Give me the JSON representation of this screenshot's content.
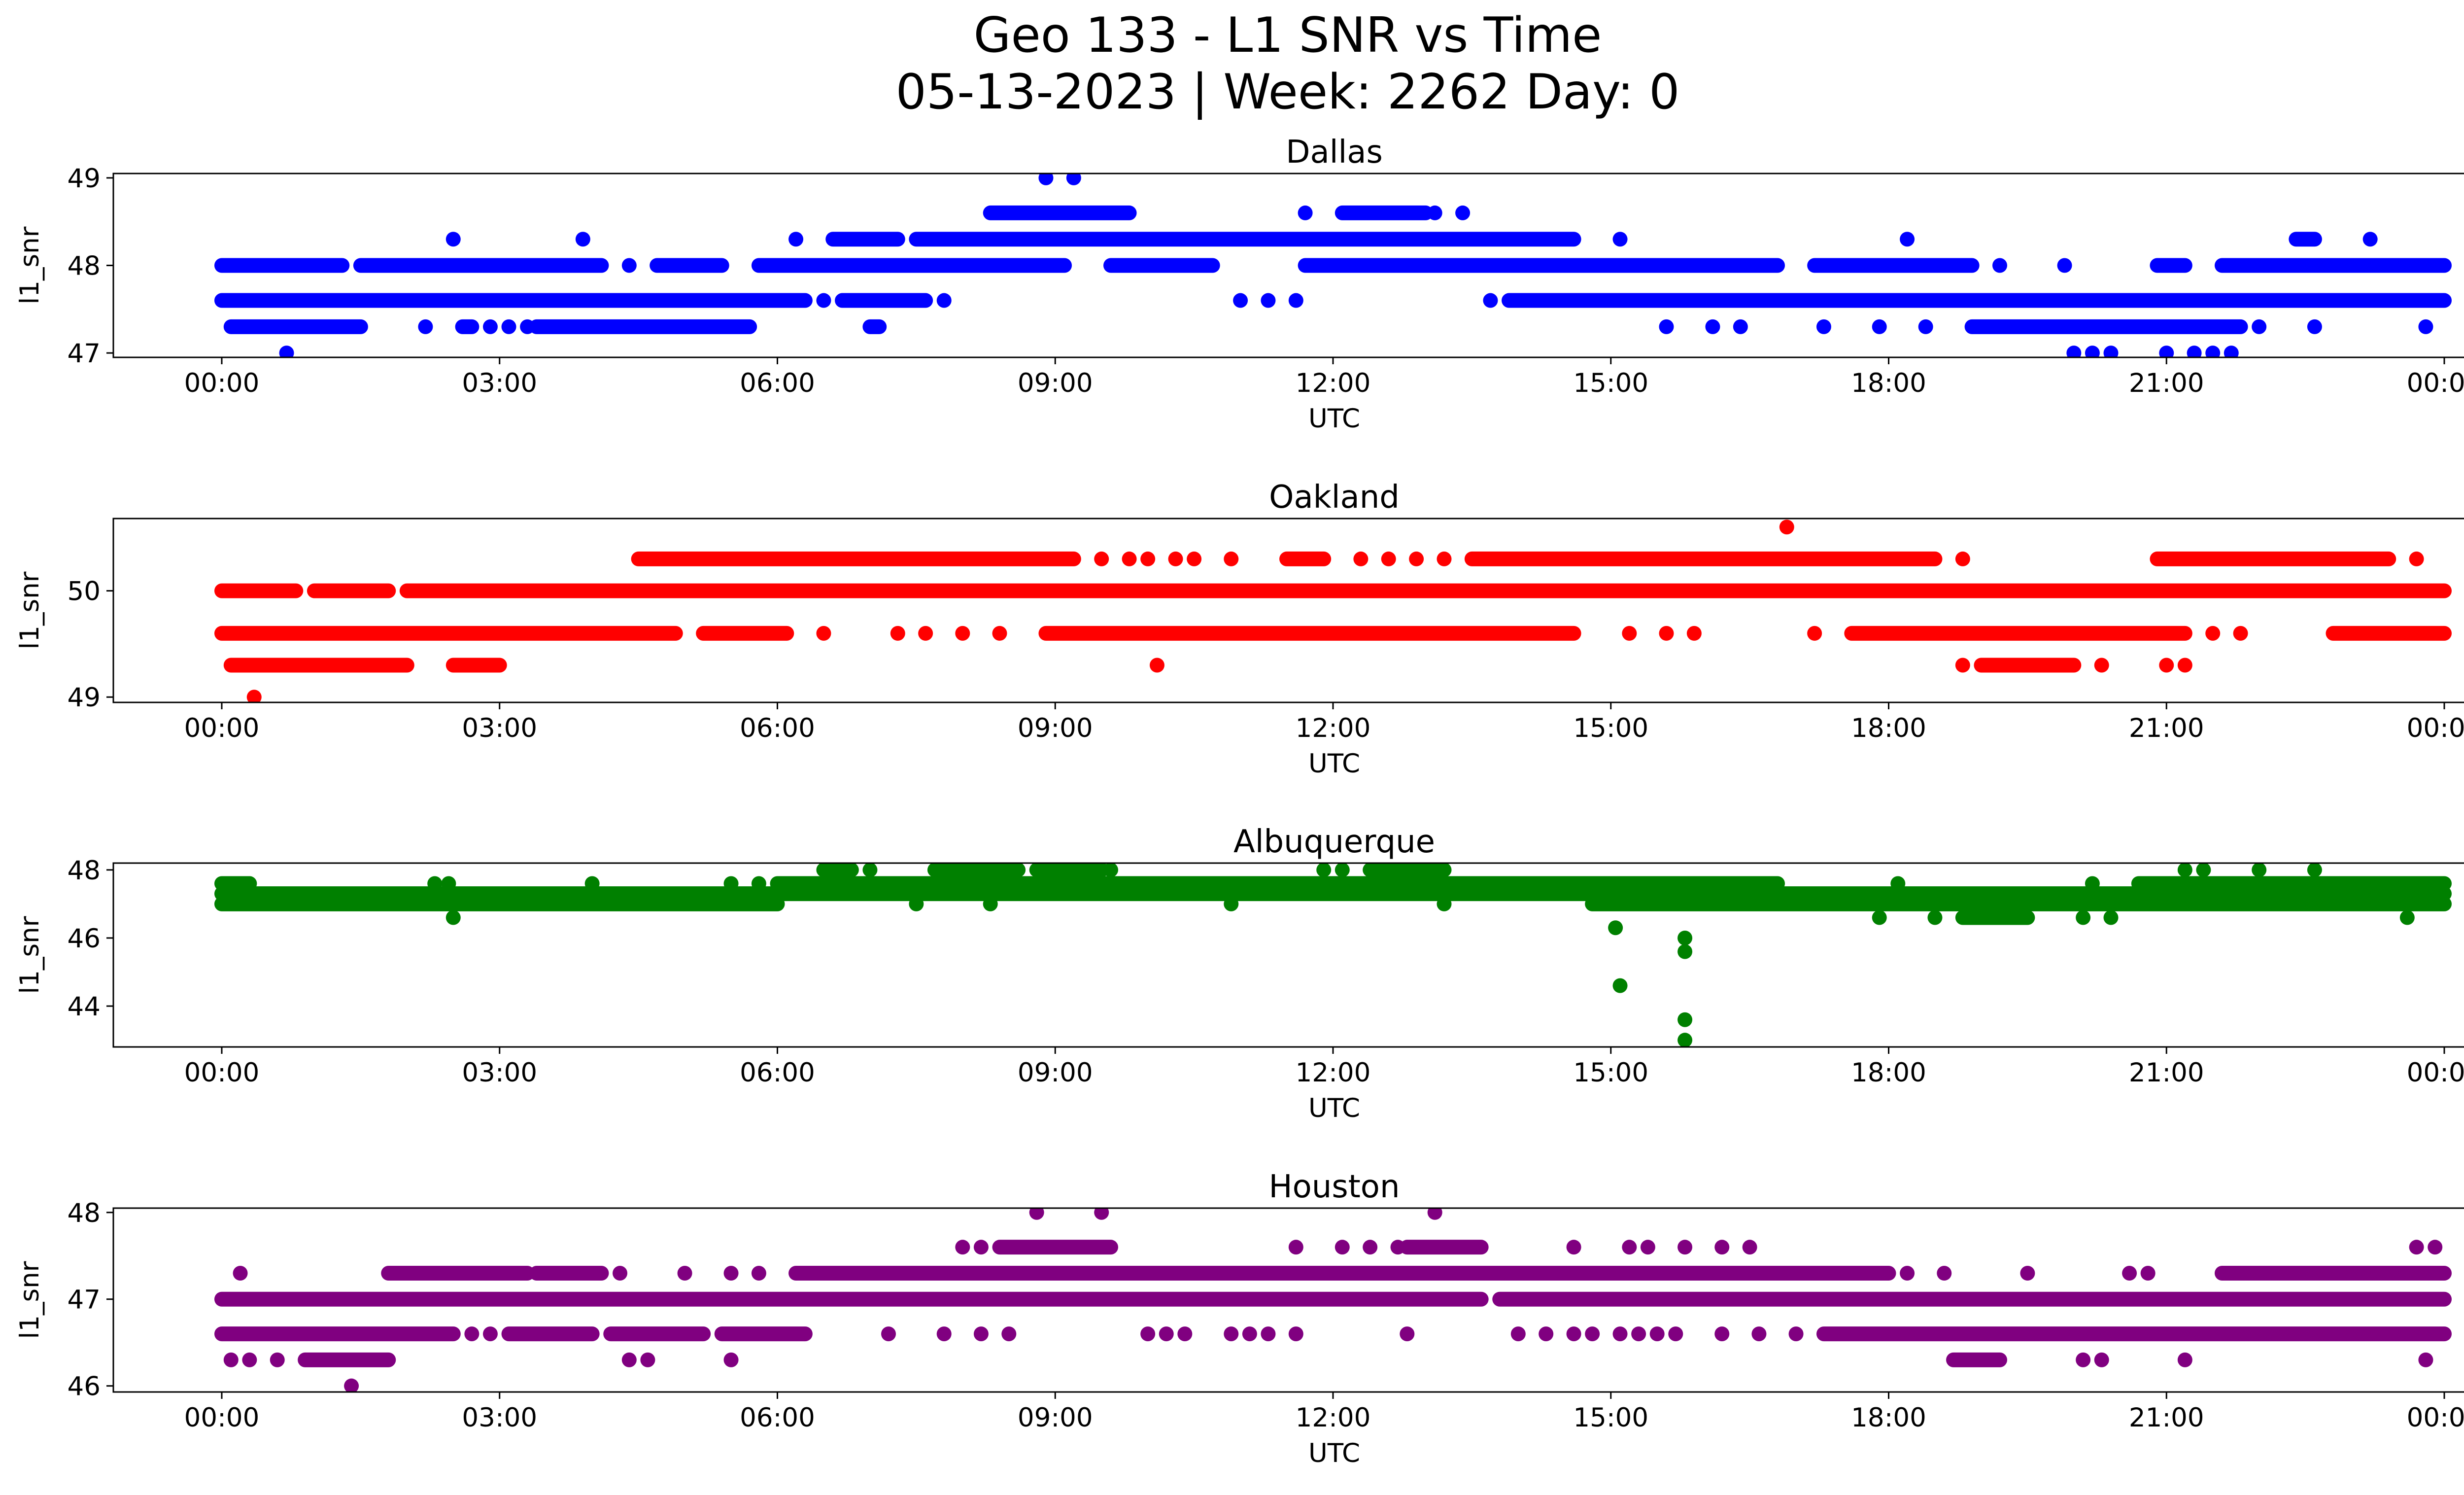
{
  "title_line1": "Geo 133 - L1 SNR vs Time",
  "title_line2": "05-13-2023 | Week: 2262 Day: 0",
  "x_tick_labels": [
    "00:00",
    "03:00",
    "06:00",
    "09:00",
    "12:00",
    "15:00",
    "18:00",
    "21:00",
    "00:00"
  ],
  "chart_data": [
    {
      "type": "scatter",
      "title": "Dallas",
      "xlabel": "UTC",
      "ylabel": "l1_snr",
      "color": "#0000ff",
      "xlim": [
        "00:00",
        "24:00"
      ],
      "ylim": [
        46.95,
        49.05
      ],
      "yticks": [
        47,
        48,
        49
      ],
      "grid": false,
      "x_hours": [
        0.0,
        24.0
      ],
      "levels": [
        {
          "y": 47.0,
          "segments": [],
          "points": [
            0.7,
            20.0,
            20.2,
            20.4,
            21.0,
            21.3,
            21.5,
            21.7
          ]
        },
        {
          "y": 47.3,
          "segments": [
            [
              0.1,
              1.5
            ],
            [
              2.6,
              2.7
            ],
            [
              3.4,
              5.7
            ],
            [
              7.0,
              7.1
            ],
            [
              18.9,
              21.8
            ]
          ],
          "points": [
            2.2,
            2.9,
            3.1,
            3.3,
            15.6,
            16.1,
            16.4,
            17.3,
            17.9,
            18.4,
            22.0,
            22.6,
            23.8
          ]
        },
        {
          "y": 47.6,
          "segments": [
            [
              0.0,
              6.3
            ],
            [
              6.7,
              7.6
            ],
            [
              13.9,
              24.0
            ]
          ],
          "points": [
            6.5,
            7.8,
            11.0,
            11.3,
            11.6,
            13.7
          ]
        },
        {
          "y": 48.0,
          "segments": [
            [
              0.0,
              1.3
            ],
            [
              1.5,
              4.1
            ],
            [
              4.7,
              5.4
            ],
            [
              5.8,
              9.1
            ],
            [
              9.6,
              10.7
            ],
            [
              11.7,
              16.8
            ],
            [
              17.2,
              18.9
            ],
            [
              20.9,
              21.2
            ],
            [
              21.6,
              24.0
            ]
          ],
          "points": [
            4.4,
            19.2,
            19.9
          ]
        },
        {
          "y": 48.3,
          "segments": [
            [
              6.6,
              7.3
            ],
            [
              7.5,
              14.6
            ],
            [
              22.4,
              22.6
            ]
          ],
          "points": [
            6.2,
            2.5,
            3.9,
            15.1,
            18.2,
            23.2
          ]
        },
        {
          "y": 48.6,
          "segments": [
            [
              8.3,
              9.8
            ],
            [
              12.1,
              13.0
            ]
          ],
          "points": [
            11.7,
            13.1,
            13.4
          ]
        },
        {
          "y": 49.0,
          "segments": [],
          "points": [
            8.9,
            9.2
          ]
        }
      ]
    },
    {
      "type": "scatter",
      "title": "Oakland",
      "xlabel": "UTC",
      "ylabel": "l1_snr",
      "color": "#ff0000",
      "xlim": [
        "00:00",
        "24:00"
      ],
      "ylim": [
        48.95,
        50.68
      ],
      "yticks": [
        49,
        50
      ],
      "grid": false,
      "x_hours": [
        0.0,
        24.0
      ],
      "levels": [
        {
          "y": 49.0,
          "segments": [],
          "points": [
            0.35
          ]
        },
        {
          "y": 49.3,
          "segments": [
            [
              0.1,
              2.0
            ],
            [
              2.5,
              3.0
            ],
            [
              19.0,
              20.0
            ]
          ],
          "points": [
            10.1,
            18.8,
            20.3,
            21.0,
            21.2
          ]
        },
        {
          "y": 49.6,
          "segments": [
            [
              0.0,
              4.9
            ],
            [
              5.2,
              6.1
            ],
            [
              8.9,
              14.6
            ],
            [
              17.6,
              21.2
            ],
            [
              22.8,
              24.0
            ]
          ],
          "points": [
            6.5,
            7.3,
            7.6,
            8.0,
            8.4,
            15.2,
            15.6,
            15.9,
            17.2,
            21.5,
            21.8
          ]
        },
        {
          "y": 50.0,
          "segments": [
            [
              0.0,
              0.8
            ],
            [
              1.0,
              1.8
            ],
            [
              2.0,
              24.0
            ]
          ],
          "points": []
        },
        {
          "y": 50.3,
          "segments": [
            [
              4.5,
              9.2
            ],
            [
              11.5,
              11.9
            ],
            [
              13.5,
              18.5
            ],
            [
              20.9,
              23.4
            ]
          ],
          "points": [
            9.5,
            9.8,
            10.0,
            10.3,
            10.5,
            10.9,
            12.3,
            12.6,
            12.9,
            13.2,
            18.8,
            23.7
          ]
        },
        {
          "y": 50.6,
          "segments": [],
          "points": [
            16.9
          ]
        }
      ]
    },
    {
      "type": "scatter",
      "title": "Albuquerque",
      "xlabel": "UTC",
      "ylabel": "l1_snr",
      "color": "#008000",
      "xlim": [
        "00:00",
        "24:00"
      ],
      "ylim": [
        42.8,
        48.2
      ],
      "yticks": [
        44,
        46,
        48
      ],
      "grid": false,
      "x_hours": [
        0.0,
        24.0
      ],
      "levels": [
        {
          "y": 43.0,
          "segments": [],
          "points": [
            15.8
          ]
        },
        {
          "y": 43.6,
          "segments": [],
          "points": [
            15.8
          ]
        },
        {
          "y": 44.6,
          "segments": [],
          "points": [
            15.1
          ]
        },
        {
          "y": 45.6,
          "segments": [],
          "points": [
            15.8
          ]
        },
        {
          "y": 46.0,
          "segments": [],
          "points": [
            15.8
          ]
        },
        {
          "y": 46.3,
          "segments": [],
          "points": [
            15.05
          ]
        },
        {
          "y": 46.6,
          "segments": [
            [
              18.8,
              19.5
            ]
          ],
          "points": [
            2.5,
            17.9,
            18.5,
            20.1,
            20.4,
            23.6
          ]
        },
        {
          "y": 47.0,
          "segments": [
            [
              0.0,
              6.0
            ],
            [
              14.8,
              24.0
            ]
          ],
          "points": [
            7.5,
            8.3,
            10.9,
            13.2
          ]
        },
        {
          "y": 47.3,
          "segments": [
            [
              0.0,
              24.0
            ]
          ],
          "points": []
        },
        {
          "y": 47.6,
          "segments": [
            [
              0.0,
              0.3
            ],
            [
              6.0,
              16.8
            ],
            [
              20.7,
              24.0
            ]
          ],
          "points": [
            2.3,
            2.45,
            4.0,
            5.5,
            5.8,
            18.1,
            20.2
          ]
        },
        {
          "y": 48.0,
          "segments": [
            [
              6.5,
              6.8
            ],
            [
              7.7,
              8.6
            ],
            [
              8.8,
              9.5
            ],
            [
              12.4,
              13.2
            ]
          ],
          "points": [
            7.0,
            9.6,
            11.9,
            12.1,
            21.2,
            21.4,
            22.0,
            22.6
          ]
        }
      ]
    },
    {
      "type": "scatter",
      "title": "Houston",
      "xlabel": "UTC",
      "ylabel": "l1_snr",
      "color": "#800080",
      "xlim": [
        "00:00",
        "24:00"
      ],
      "ylim": [
        45.93,
        48.05
      ],
      "yticks": [
        46,
        47,
        48
      ],
      "grid": false,
      "x_hours": [
        0.0,
        24.0
      ],
      "levels": [
        {
          "y": 46.0,
          "segments": [],
          "points": [
            1.4
          ]
        },
        {
          "y": 46.3,
          "segments": [
            [
              0.9,
              1.8
            ],
            [
              18.7,
              19.2
            ]
          ],
          "points": [
            0.1,
            0.3,
            0.6,
            4.4,
            4.6,
            5.5,
            20.1,
            20.3,
            21.2,
            23.8
          ]
        },
        {
          "y": 46.6,
          "segments": [
            [
              0.0,
              2.5
            ],
            [
              3.1,
              4.0
            ],
            [
              4.2,
              5.2
            ],
            [
              5.4,
              6.3
            ],
            [
              17.3,
              24.0
            ]
          ],
          "points": [
            2.7,
            2.9,
            7.2,
            7.8,
            8.2,
            8.5,
            10.0,
            10.2,
            10.4,
            10.9,
            11.1,
            11.3,
            11.6,
            12.8,
            14.0,
            14.3,
            14.6,
            14.8,
            15.1,
            15.3,
            15.5,
            15.7,
            16.2,
            16.6,
            17.0
          ]
        },
        {
          "y": 47.0,
          "segments": [
            [
              0.0,
              13.6
            ],
            [
              13.8,
              24.0
            ]
          ],
          "points": []
        },
        {
          "y": 47.3,
          "segments": [
            [
              1.8,
              3.3
            ],
            [
              3.4,
              4.1
            ],
            [
              6.2,
              18.0
            ],
            [
              21.6,
              24.0
            ]
          ],
          "points": [
            0.2,
            4.3,
            5.0,
            5.5,
            5.8,
            18.2,
            18.6,
            19.5,
            20.6,
            20.8
          ]
        },
        {
          "y": 47.6,
          "segments": [
            [
              8.4,
              9.6
            ],
            [
              12.8,
              13.6
            ]
          ],
          "points": [
            8.0,
            8.2,
            11.6,
            12.1,
            12.4,
            12.7,
            14.6,
            15.2,
            15.4,
            15.8,
            16.2,
            16.5,
            23.7,
            23.9
          ]
        },
        {
          "y": 48.0,
          "segments": [],
          "points": [
            8.8,
            9.5,
            13.1
          ]
        }
      ]
    }
  ]
}
